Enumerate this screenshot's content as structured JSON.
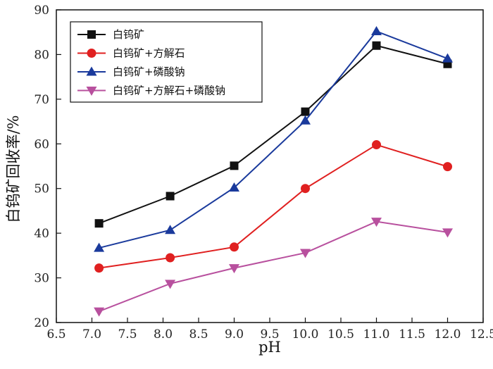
{
  "chart_data": {
    "type": "line",
    "xlabel": "pH",
    "ylabel": "白钨矿回收率/%",
    "xlim": [
      6.5,
      12.5
    ],
    "ylim": [
      20,
      90
    ],
    "xticks": [
      "6.5",
      "7.0",
      "7.5",
      "8.0",
      "8.5",
      "9.0",
      "9.5",
      "10.0",
      "10.5",
      "11.0",
      "11.5",
      "12.0",
      "12.5"
    ],
    "yticks": [
      "20",
      "30",
      "40",
      "50",
      "60",
      "70",
      "80",
      "90"
    ],
    "grid": false,
    "legend_position": "top-left",
    "x": [
      7.1,
      8.1,
      9.0,
      10.0,
      11.0,
      12.0
    ],
    "series": [
      {
        "name": "白钨矿",
        "color": "#111111",
        "marker": "square",
        "values": [
          42.2,
          48.3,
          55.1,
          67.2,
          82.0,
          77.9
        ]
      },
      {
        "name": "白钨矿+方解石",
        "color": "#e02020",
        "marker": "circle",
        "values": [
          32.2,
          34.5,
          36.9,
          50.0,
          59.8,
          54.9
        ]
      },
      {
        "name": "白钨矿+磷酸钠",
        "color": "#1a3a9c",
        "marker": "triangle-up",
        "values": [
          36.7,
          40.7,
          50.2,
          65.2,
          85.2,
          79.1
        ]
      },
      {
        "name": "白钨矿+方解石+磷酸钠",
        "color": "#b8509e",
        "marker": "triangle-down",
        "values": [
          22.5,
          28.7,
          32.2,
          35.6,
          42.6,
          40.2
        ]
      }
    ]
  }
}
